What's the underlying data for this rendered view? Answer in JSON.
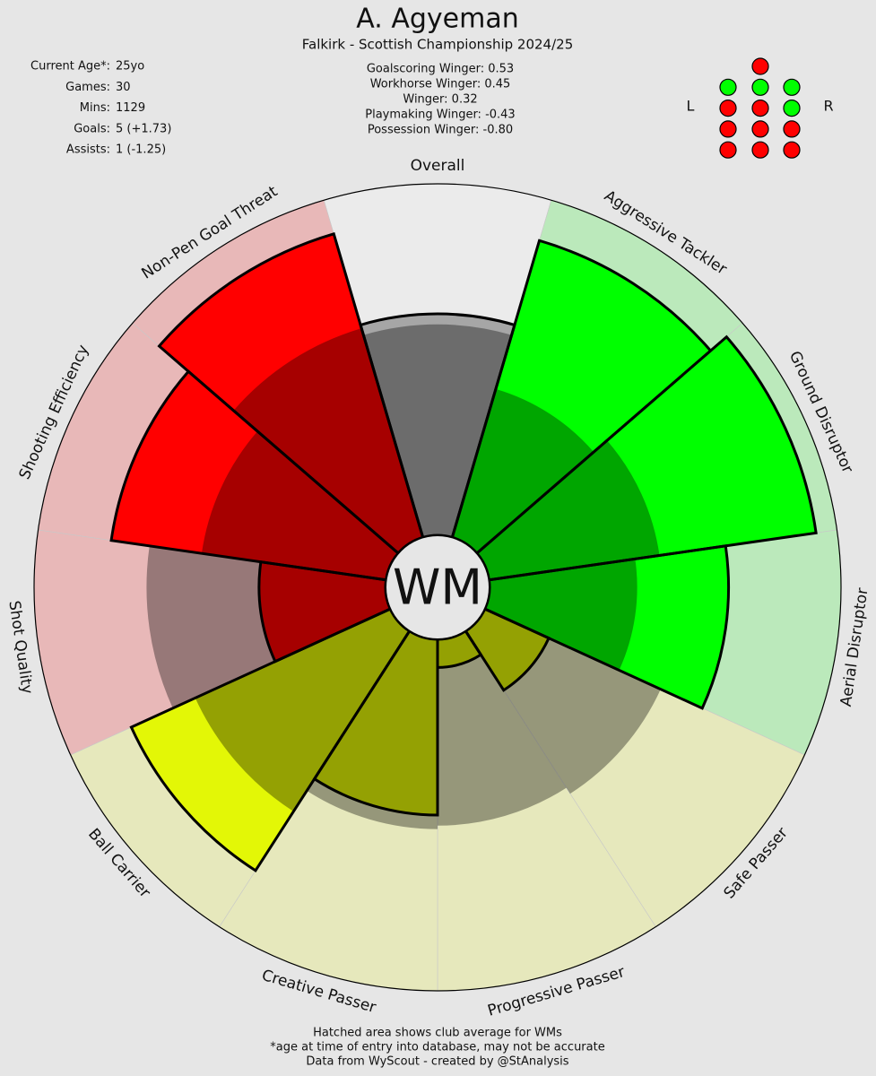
{
  "header": {
    "title": "A. Agyeman",
    "subtitle": "Falkirk - Scottish Championship 2024/25"
  },
  "player_info": [
    {
      "label": "Current Age*:",
      "value": "25yo"
    },
    {
      "label": "Games:",
      "value": "30"
    },
    {
      "label": "Mins:",
      "value": "1129"
    },
    {
      "label": "Goals:",
      "value": "5 (+1.73)"
    },
    {
      "label": "Assists:",
      "value": "1 (-1.25)"
    }
  ],
  "archetypes": [
    "Goalscoring Winger: 0.53",
    "Workhorse Winger: 0.45",
    "Winger: 0.32",
    "Playmaking Winger: -0.43",
    "Possession Winger: -0.80"
  ],
  "position_map": {
    "left": "L",
    "right": "R",
    "rows": [
      [
        "#ff0000"
      ],
      [
        "#00ff00",
        "#00ff00",
        "#00ff00"
      ],
      [
        "#ff0000",
        "#ff0000",
        "#00ff00"
      ],
      [
        "#ff0000",
        "#ff0000",
        "#ff0000"
      ],
      [
        "#ff0000",
        "#ff0000",
        "#ff0000"
      ]
    ]
  },
  "chart_data": {
    "type": "polar_bar",
    "center_label": "WM",
    "categories": [
      "Overall",
      "Aggressive Tackler",
      "Ground Disruptor",
      "Aerial Disruptor",
      "Safe Passer",
      "Progressive Passer",
      "Creative Passer",
      "Ball Carrier",
      "Shot Quality",
      "Shooting Efficiency",
      "Non-Pen Goal Threat"
    ],
    "values": [
      63,
      88,
      94,
      68,
      20,
      8,
      50,
      81,
      36,
      79,
      90
    ],
    "club_average": [
      60,
      44,
      49,
      42,
      55,
      53,
      54,
      61,
      68,
      53,
      62
    ],
    "colors": [
      "#a6a6a6",
      "#00ff00",
      "#00ff00",
      "#00ff00",
      "#e3f706",
      "#e3f706",
      "#e3f706",
      "#e3f706",
      "#ff0000",
      "#ff0000",
      "#ff0000"
    ],
    "background_colors": [
      "#ebebeb",
      "#bbe9bb",
      "#bbe9bb",
      "#bbe9bb",
      "#e6e8bc",
      "#e6e8bc",
      "#e6e8bc",
      "#e6e8bc",
      "#e8b8b8",
      "#e8b8b8",
      "#e8b8b8"
    ],
    "rlim": [
      0,
      100
    ]
  },
  "footer": [
    "Hatched area shows club average for WMs",
    "*age at time of entry into database, may not be accurate",
    "Data from WyScout - created by @StAnalysis"
  ]
}
